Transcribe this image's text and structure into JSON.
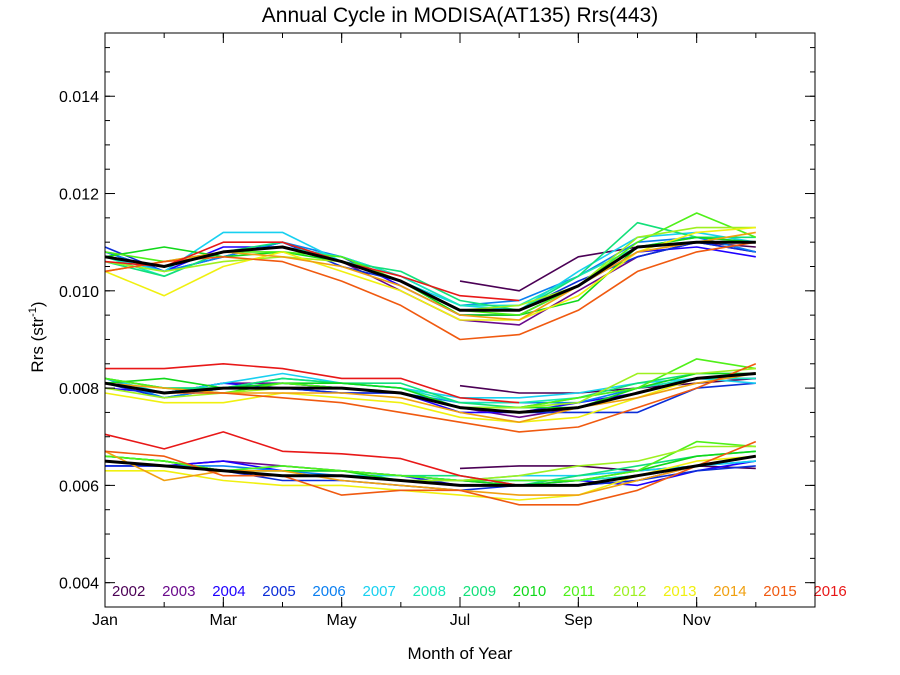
{
  "chart_data": {
    "type": "line",
    "title": "Annual Cycle in MODISA(AT135) Rrs(443)",
    "xlabel": "Month of Year",
    "ylabel": "Rrs (str",
    "ylabel_sup": "-1",
    "ylabel_suffix": ")",
    "xlim": [
      1,
      13
    ],
    "ylim": [
      0.0035,
      0.0153
    ],
    "x_ticks": [
      {
        "value": 1,
        "label": "Jan"
      },
      {
        "value": 3,
        "label": "Mar"
      },
      {
        "value": 5,
        "label": "May"
      },
      {
        "value": 7,
        "label": "Jul"
      },
      {
        "value": 9,
        "label": "Sep"
      },
      {
        "value": 11,
        "label": "Nov"
      }
    ],
    "y_ticks": [
      {
        "value": 0.004,
        "label": "0.004"
      },
      {
        "value": 0.006,
        "label": "0.006"
      },
      {
        "value": 0.008,
        "label": "0.008"
      },
      {
        "value": 0.01,
        "label": "0.010"
      },
      {
        "value": 0.012,
        "label": "0.012"
      },
      {
        "value": 0.014,
        "label": "0.014"
      }
    ],
    "x": [
      1,
      2,
      3,
      4,
      5,
      6,
      7,
      8,
      9,
      10,
      11,
      12
    ],
    "legend_position": "bottom",
    "series": [
      {
        "name": "2002",
        "color": "#4b0055",
        "start": 7,
        "values": {
          "upper": [
            null,
            null,
            null,
            null,
            null,
            null,
            0.0102,
            0.01,
            0.0107,
            0.0109,
            0.011,
            0.0109
          ],
          "middle": [
            null,
            null,
            null,
            null,
            null,
            null,
            0.00805,
            0.0079,
            0.0079,
            0.008,
            0.0081,
            0.0082
          ],
          "lower": [
            null,
            null,
            null,
            null,
            null,
            null,
            0.00635,
            0.0064,
            0.0064,
            0.0063,
            0.0064,
            0.00635
          ]
        }
      },
      {
        "name": "2003",
        "color": "#6a0a8c",
        "values": {
          "upper": [
            0.0107,
            0.0105,
            0.0108,
            0.0109,
            0.0106,
            0.01,
            0.0094,
            0.0093,
            0.01,
            0.0107,
            0.011,
            0.0108
          ],
          "middle": [
            0.0081,
            0.0079,
            0.0081,
            0.0081,
            0.008,
            0.0079,
            0.0076,
            0.0074,
            0.0076,
            0.0079,
            0.0082,
            0.0083
          ],
          "lower": [
            0.0065,
            0.0064,
            0.0065,
            0.0064,
            0.0063,
            0.0062,
            0.0061,
            0.006,
            0.006,
            0.0061,
            0.0064,
            0.0066
          ]
        }
      },
      {
        "name": "2004",
        "color": "#1e00ff",
        "values": {
          "upper": [
            0.0108,
            0.0104,
            0.0109,
            0.0109,
            0.0107,
            0.0101,
            0.0095,
            0.0095,
            0.0101,
            0.0108,
            0.0109,
            0.0107
          ],
          "middle": [
            0.008,
            0.0079,
            0.0081,
            0.008,
            0.0079,
            0.0079,
            0.0075,
            0.0075,
            0.0077,
            0.0079,
            0.0082,
            0.0082
          ],
          "lower": [
            0.0064,
            0.0064,
            0.0065,
            0.0063,
            0.0063,
            0.0062,
            0.006,
            0.006,
            0.0061,
            0.006,
            0.0063,
            0.0065
          ]
        }
      },
      {
        "name": "2005",
        "color": "#0b2dd8",
        "values": {
          "upper": [
            0.0109,
            0.0104,
            0.0107,
            0.011,
            0.0105,
            0.0102,
            0.0096,
            0.0096,
            0.0102,
            0.0107,
            0.011,
            0.0108
          ],
          "middle": [
            0.0081,
            0.0078,
            0.008,
            0.008,
            0.0079,
            0.0079,
            0.0076,
            0.0075,
            0.0075,
            0.0075,
            0.008,
            0.0081
          ],
          "lower": [
            0.0064,
            0.0064,
            0.0063,
            0.0061,
            0.0061,
            0.006,
            0.0059,
            0.006,
            0.006,
            0.0061,
            0.0063,
            0.0064
          ]
        }
      },
      {
        "name": "2006",
        "color": "#0b7ff0",
        "values": {
          "upper": [
            0.0108,
            0.0104,
            0.0107,
            0.011,
            0.0107,
            0.0103,
            0.0097,
            0.0098,
            0.0103,
            0.011,
            0.0111,
            0.0108
          ],
          "middle": [
            0.0082,
            0.0078,
            0.008,
            0.0081,
            0.008,
            0.0079,
            0.0077,
            0.0077,
            0.0077,
            0.008,
            0.0082,
            0.0083
          ],
          "lower": [
            0.0065,
            0.0064,
            0.0064,
            0.0063,
            0.0062,
            0.0062,
            0.0061,
            0.0061,
            0.0061,
            0.0062,
            0.0064,
            0.0065
          ]
        }
      },
      {
        "name": "2007",
        "color": "#18d0f0",
        "values": {
          "upper": [
            0.0107,
            0.0104,
            0.0112,
            0.0112,
            0.0106,
            0.0102,
            0.0097,
            0.0096,
            0.0104,
            0.0111,
            0.0112,
            0.011
          ],
          "middle": [
            0.0082,
            0.0079,
            0.0081,
            0.0083,
            0.0081,
            0.008,
            0.0078,
            0.0078,
            0.0079,
            0.0081,
            0.0082,
            0.0081
          ],
          "lower": [
            0.0065,
            0.0064,
            0.0063,
            0.0062,
            0.0062,
            0.0062,
            0.0061,
            0.0062,
            0.0062,
            0.0063,
            0.0064,
            0.0065
          ]
        }
      },
      {
        "name": "2008",
        "color": "#19e8b8",
        "values": {
          "upper": [
            0.0107,
            0.0103,
            0.0108,
            0.0109,
            0.0107,
            0.0103,
            0.0097,
            0.0097,
            0.0103,
            0.0109,
            0.0111,
            0.011
          ],
          "middle": [
            0.0082,
            0.008,
            0.008,
            0.0082,
            0.0081,
            0.008,
            0.0077,
            0.0077,
            0.0078,
            0.008,
            0.0082,
            0.0082
          ],
          "lower": [
            0.0066,
            0.0065,
            0.0063,
            0.0064,
            0.0063,
            0.0062,
            0.0061,
            0.0061,
            0.0061,
            0.0062,
            0.0064,
            0.0066
          ]
        }
      },
      {
        "name": "2009",
        "color": "#12e07a",
        "values": {
          "upper": [
            0.0106,
            0.0103,
            0.0108,
            0.011,
            0.0106,
            0.0104,
            0.0098,
            0.0096,
            0.0103,
            0.0114,
            0.0111,
            0.0111
          ],
          "middle": [
            0.0082,
            0.008,
            0.008,
            0.0082,
            0.0081,
            0.0081,
            0.0077,
            0.0076,
            0.0078,
            0.0081,
            0.0083,
            0.0083
          ],
          "lower": [
            0.0066,
            0.0065,
            0.0063,
            0.0063,
            0.0063,
            0.0062,
            0.0062,
            0.006,
            0.0062,
            0.0064,
            0.0066,
            0.0067
          ]
        }
      },
      {
        "name": "2010",
        "color": "#10d81a",
        "values": {
          "upper": [
            0.0107,
            0.0109,
            0.0107,
            0.0108,
            0.0106,
            0.0102,
            0.0095,
            0.0095,
            0.0098,
            0.0109,
            0.0111,
            0.011
          ],
          "middle": [
            0.0081,
            0.0082,
            0.008,
            0.0081,
            0.0081,
            0.008,
            0.0076,
            0.0076,
            0.0076,
            0.008,
            0.0083,
            0.0083
          ],
          "lower": [
            0.0066,
            0.0065,
            0.0063,
            0.0063,
            0.0063,
            0.0061,
            0.0061,
            0.006,
            0.0061,
            0.0063,
            0.0066,
            0.0067
          ]
        }
      },
      {
        "name": "2011",
        "color": "#4ff018",
        "values": {
          "upper": [
            0.0108,
            0.0106,
            0.0108,
            0.0108,
            0.0107,
            0.0102,
            0.0096,
            0.0095,
            0.0101,
            0.011,
            0.0116,
            0.0111
          ],
          "middle": [
            0.0082,
            0.008,
            0.0079,
            0.0081,
            0.008,
            0.0079,
            0.0076,
            0.0076,
            0.0078,
            0.008,
            0.0086,
            0.0084
          ],
          "lower": [
            0.0066,
            0.0065,
            0.0063,
            0.0064,
            0.0063,
            0.0062,
            0.0061,
            0.0061,
            0.0061,
            0.0063,
            0.0069,
            0.0068
          ]
        }
      },
      {
        "name": "2012",
        "color": "#9ef020",
        "values": {
          "upper": [
            0.0106,
            0.0104,
            0.0106,
            0.0107,
            0.0106,
            0.0102,
            0.0096,
            0.0097,
            0.0101,
            0.0111,
            0.0113,
            0.0113
          ],
          "middle": [
            0.008,
            0.0078,
            0.0079,
            0.008,
            0.008,
            0.0079,
            0.0076,
            0.0076,
            0.0077,
            0.0083,
            0.0083,
            0.0084
          ],
          "lower": [
            0.0065,
            0.0064,
            0.0063,
            0.0062,
            0.0062,
            0.0061,
            0.0061,
            0.0062,
            0.0064,
            0.0065,
            0.0068,
            0.0068
          ]
        }
      },
      {
        "name": "2013",
        "color": "#f0f010",
        "values": {
          "upper": [
            0.0104,
            0.0099,
            0.0105,
            0.0108,
            0.0104,
            0.01,
            0.0094,
            0.0094,
            0.0099,
            0.0108,
            0.0112,
            0.0113
          ],
          "middle": [
            0.0079,
            0.0077,
            0.0077,
            0.0079,
            0.0078,
            0.0077,
            0.0074,
            0.0073,
            0.0074,
            0.0078,
            0.0082,
            0.0083
          ],
          "lower": [
            0.0063,
            0.0063,
            0.0061,
            0.006,
            0.006,
            0.0059,
            0.0058,
            0.0057,
            0.0058,
            0.0062,
            0.0065,
            0.0066
          ]
        }
      },
      {
        "name": "2014",
        "color": "#f0a010",
        "values": {
          "upper": [
            0.0104,
            0.0106,
            0.0108,
            0.0107,
            0.0105,
            0.0101,
            0.0095,
            0.0094,
            0.0101,
            0.0108,
            0.011,
            0.0112
          ],
          "middle": [
            0.0081,
            0.008,
            0.0079,
            0.0079,
            0.0079,
            0.0078,
            0.0075,
            0.0073,
            0.0076,
            0.0078,
            0.0081,
            0.0083
          ],
          "lower": [
            0.0067,
            0.0061,
            0.0063,
            0.0063,
            0.0061,
            0.006,
            0.0059,
            0.0058,
            0.0058,
            0.0061,
            0.0064,
            0.0066
          ]
        }
      },
      {
        "name": "2015",
        "color": "#f05a10",
        "values": {
          "upper": [
            0.0104,
            0.0106,
            0.0107,
            0.0106,
            0.0102,
            0.0097,
            0.009,
            0.0091,
            0.0096,
            0.0104,
            0.0108,
            0.011
          ],
          "middle": [
            0.0081,
            0.0079,
            0.0079,
            0.0078,
            0.0077,
            0.0075,
            0.0073,
            0.0071,
            0.0072,
            0.0076,
            0.008,
            0.0085
          ],
          "lower": [
            0.0067,
            0.0066,
            0.0062,
            0.0062,
            0.0058,
            0.0059,
            0.0059,
            0.0056,
            0.0056,
            0.0059,
            0.0064,
            0.0069
          ]
        }
      },
      {
        "name": "2016",
        "color": "#e81818",
        "end": 8,
        "values": {
          "upper": [
            0.0106,
            0.0105,
            0.011,
            0.011,
            0.0106,
            0.0103,
            0.0099,
            0.0098,
            null,
            null,
            null,
            null
          ],
          "middle": [
            0.0084,
            0.0084,
            0.0085,
            0.0084,
            0.0082,
            0.0082,
            0.0078,
            0.0077,
            null,
            null,
            null,
            null
          ],
          "lower": [
            0.00705,
            0.00675,
            0.0071,
            0.0067,
            0.00665,
            0.00655,
            0.0062,
            0.006,
            null,
            null,
            null,
            null
          ]
        }
      },
      {
        "name": "",
        "color": "#000000",
        "mean": true,
        "values": {
          "upper": [
            0.0107,
            0.0105,
            0.0108,
            0.0109,
            0.0106,
            0.0102,
            0.0096,
            0.0096,
            0.0101,
            0.0109,
            0.011,
            0.011
          ],
          "middle": [
            0.0081,
            0.0079,
            0.008,
            0.008,
            0.008,
            0.0079,
            0.0076,
            0.0075,
            0.0076,
            0.0079,
            0.0082,
            0.0083
          ],
          "lower": [
            0.0065,
            0.0064,
            0.0063,
            0.0062,
            0.0062,
            0.0061,
            0.006,
            0.006,
            0.006,
            0.0062,
            0.0064,
            0.0066
          ]
        }
      }
    ]
  }
}
